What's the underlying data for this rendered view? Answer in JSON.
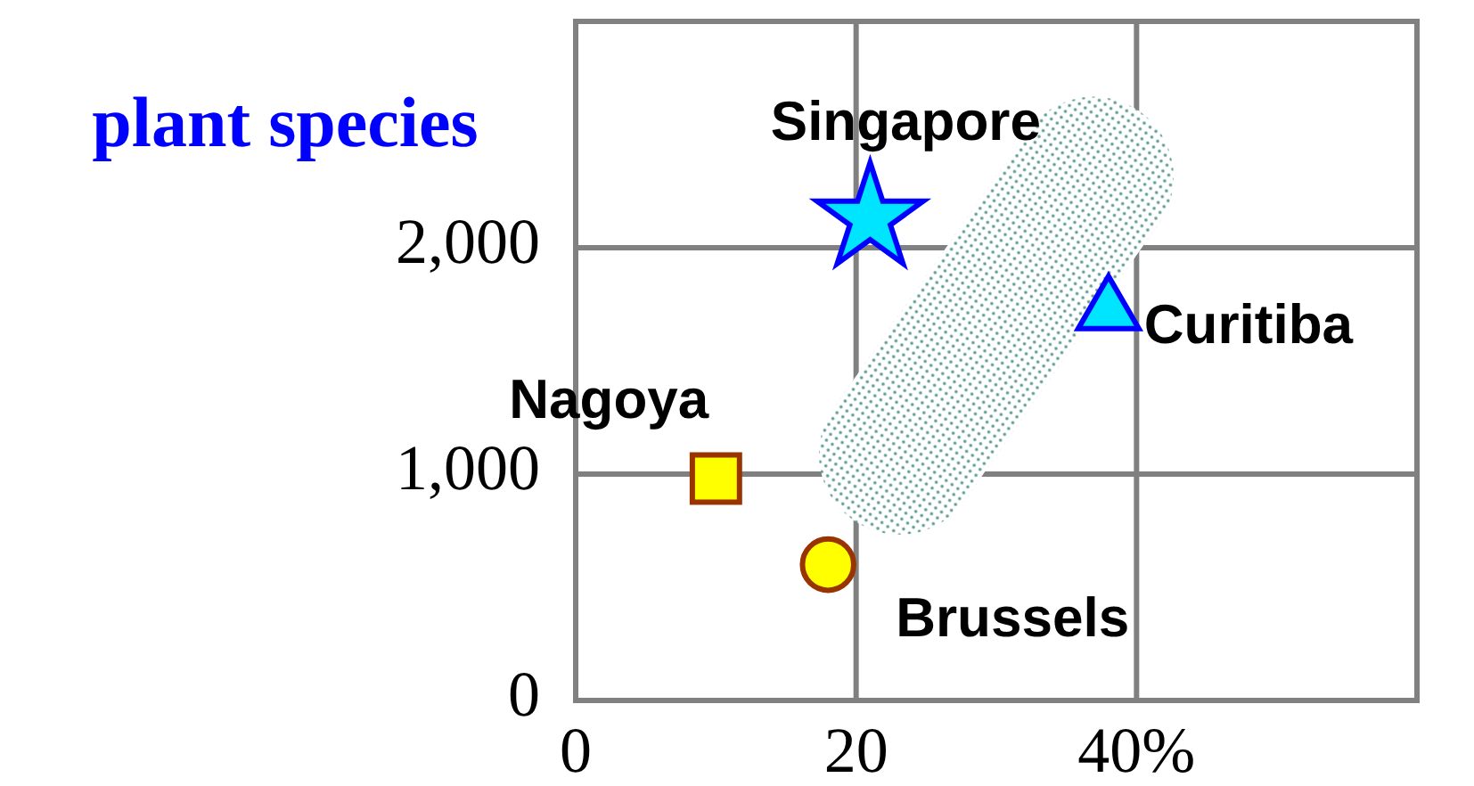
{
  "chart_data": {
    "type": "scatter",
    "ylabel": "plant species",
    "xlim": [
      0,
      60
    ],
    "ylim": [
      0,
      3000
    ],
    "xticks": [
      0,
      20,
      {
        "value": 40,
        "label": "40%"
      }
    ],
    "yticks": [
      0,
      {
        "value": 1000,
        "label": "1,000"
      },
      {
        "value": 2000,
        "label": "2,000"
      }
    ],
    "grid": true,
    "series": [
      {
        "name": "Singapore",
        "color": "#00e5ff",
        "marker": "star",
        "x": [
          21
        ],
        "values": [
          2130
        ]
      },
      {
        "name": "Curitiba",
        "color": "#00e5ff",
        "marker": "triangle",
        "x": [
          38
        ],
        "values": [
          1720
        ]
      },
      {
        "name": "Nagoya",
        "color": "#ffff00",
        "marker": "square",
        "x": [
          10
        ],
        "values": [
          980
        ]
      },
      {
        "name": "Brussels",
        "color": "#ffff00",
        "marker": "circle",
        "x": [
          18
        ],
        "values": [
          600
        ]
      }
    ]
  }
}
